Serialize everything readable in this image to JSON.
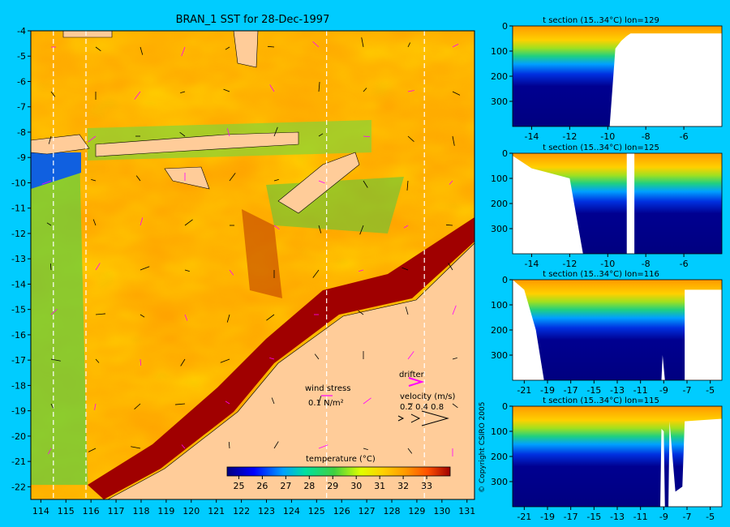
{
  "main_map": {
    "title": "BRAN_1 SST for 28-Dec-1997",
    "x_ticks": [
      "114",
      "115",
      "116",
      "117",
      "118",
      "119",
      "120",
      "121",
      "122",
      "123",
      "124",
      "125",
      "126",
      "127",
      "128",
      "129",
      "130",
      "131"
    ],
    "y_ticks": [
      "-4",
      "-5",
      "-6",
      "-7",
      "-8",
      "-9",
      "-10",
      "-11",
      "-12",
      "-13",
      "-14",
      "-15",
      "-16",
      "-17",
      "-18",
      "-19",
      "-20",
      "-21",
      "-22"
    ],
    "colors": {
      "background": "#00ccff",
      "land": "#ffcc99",
      "sea_base": "#ff9f00"
    }
  },
  "legend": {
    "wind_stress_label": "wind stress",
    "wind_stress_scale": "0.1 N/m²",
    "drifter_label": "drifter",
    "velocity_label": "velocity (m/s)",
    "velocity_scale": "0.2 0.4 0.8",
    "colorbar_title": "temperature (°C)",
    "colorbar_ticks": [
      "25",
      "26",
      "27",
      "28",
      "29",
      "30",
      "31",
      "32",
      "33"
    ]
  },
  "copyright": "© Copyright CSIRO 2005",
  "chart_data": [
    {
      "type": "heatmap",
      "title": "BRAN_1 SST for 28-Dec-1997",
      "xlim": [
        113.6,
        131.3
      ],
      "ylim": [
        -22.5,
        -4
      ],
      "x_ticks": [
        114,
        115,
        116,
        117,
        118,
        119,
        120,
        121,
        122,
        123,
        124,
        125,
        126,
        127,
        128,
        129,
        130,
        131
      ],
      "y_ticks": [
        -4,
        -5,
        -6,
        -7,
        -8,
        -9,
        -10,
        -11,
        -12,
        -13,
        -14,
        -15,
        -16,
        -17,
        -18,
        -19,
        -20,
        -21,
        -22
      ],
      "colorbar": {
        "min": 24.5,
        "max": 34,
        "ticks": [
          25,
          26,
          27,
          28,
          29,
          30,
          31,
          32,
          33
        ],
        "label": "temperature (°C)"
      },
      "section_longitudes": [
        114.5,
        115.8,
        125.4,
        129.3
      ]
    },
    {
      "type": "heatmap",
      "title": "t section (15..34°C) lon=129",
      "xlim": [
        -15,
        -4
      ],
      "ylim": [
        400,
        0
      ],
      "x_ticks": [
        -14,
        -12,
        -10,
        -8,
        -6
      ],
      "y_ticks": [
        0,
        100,
        200,
        300
      ],
      "bottom_depth": [
        [
          -15,
          400
        ],
        [
          -9.9,
          400
        ],
        [
          -9.6,
          90
        ],
        [
          -9.3,
          60
        ],
        [
          -9,
          40
        ],
        [
          -8.8,
          30
        ],
        [
          -4,
          30
        ]
      ]
    },
    {
      "type": "heatmap",
      "title": "t section (15..34°C) lon=125",
      "xlim": [
        -15,
        -4
      ],
      "ylim": [
        400,
        0
      ],
      "x_ticks": [
        -14,
        -12,
        -10,
        -8,
        -6
      ],
      "y_ticks": [
        0,
        100,
        200,
        300
      ],
      "bottom_depth": [
        [
          -15,
          10
        ],
        [
          -14,
          60
        ],
        [
          -13,
          80
        ],
        [
          -12,
          100
        ],
        [
          -11.3,
          400
        ],
        [
          -9,
          400
        ],
        [
          -9,
          0
        ],
        [
          -8.6,
          0
        ],
        [
          -8.6,
          400
        ],
        [
          -4,
          400
        ]
      ]
    },
    {
      "type": "heatmap",
      "title": "t section (15..34°C) lon=116",
      "xlim": [
        -22,
        -4
      ],
      "ylim": [
        400,
        0
      ],
      "x_ticks": [
        -21,
        -19,
        -17,
        -15,
        -13,
        -11,
        -9,
        -7,
        -5
      ],
      "y_ticks": [
        0,
        100,
        200,
        300
      ],
      "bottom_depth": [
        [
          -22,
          0
        ],
        [
          -21,
          40
        ],
        [
          -20,
          200
        ],
        [
          -19.3,
          400
        ],
        [
          -9.2,
          400
        ],
        [
          -9.1,
          300
        ],
        [
          -8.9,
          400
        ],
        [
          -7.2,
          400
        ],
        [
          -7.2,
          40
        ],
        [
          -4,
          40
        ]
      ]
    },
    {
      "type": "heatmap",
      "title": "t section (15..34°C) lon=115",
      "xlim": [
        -22,
        -4
      ],
      "ylim": [
        400,
        0
      ],
      "x_ticks": [
        -21,
        -19,
        -17,
        -15,
        -13,
        -11,
        -9,
        -7,
        -5
      ],
      "y_ticks": [
        0,
        100,
        200,
        300
      ],
      "bottom_depth": [
        [
          -22,
          400
        ],
        [
          -9.3,
          400
        ],
        [
          -9.2,
          90
        ],
        [
          -9,
          100
        ],
        [
          -8.9,
          400
        ],
        [
          -8.6,
          400
        ],
        [
          -8.5,
          60
        ],
        [
          -8,
          340
        ],
        [
          -7.4,
          320
        ],
        [
          -7.2,
          60
        ],
        [
          -4,
          50
        ]
      ]
    }
  ]
}
